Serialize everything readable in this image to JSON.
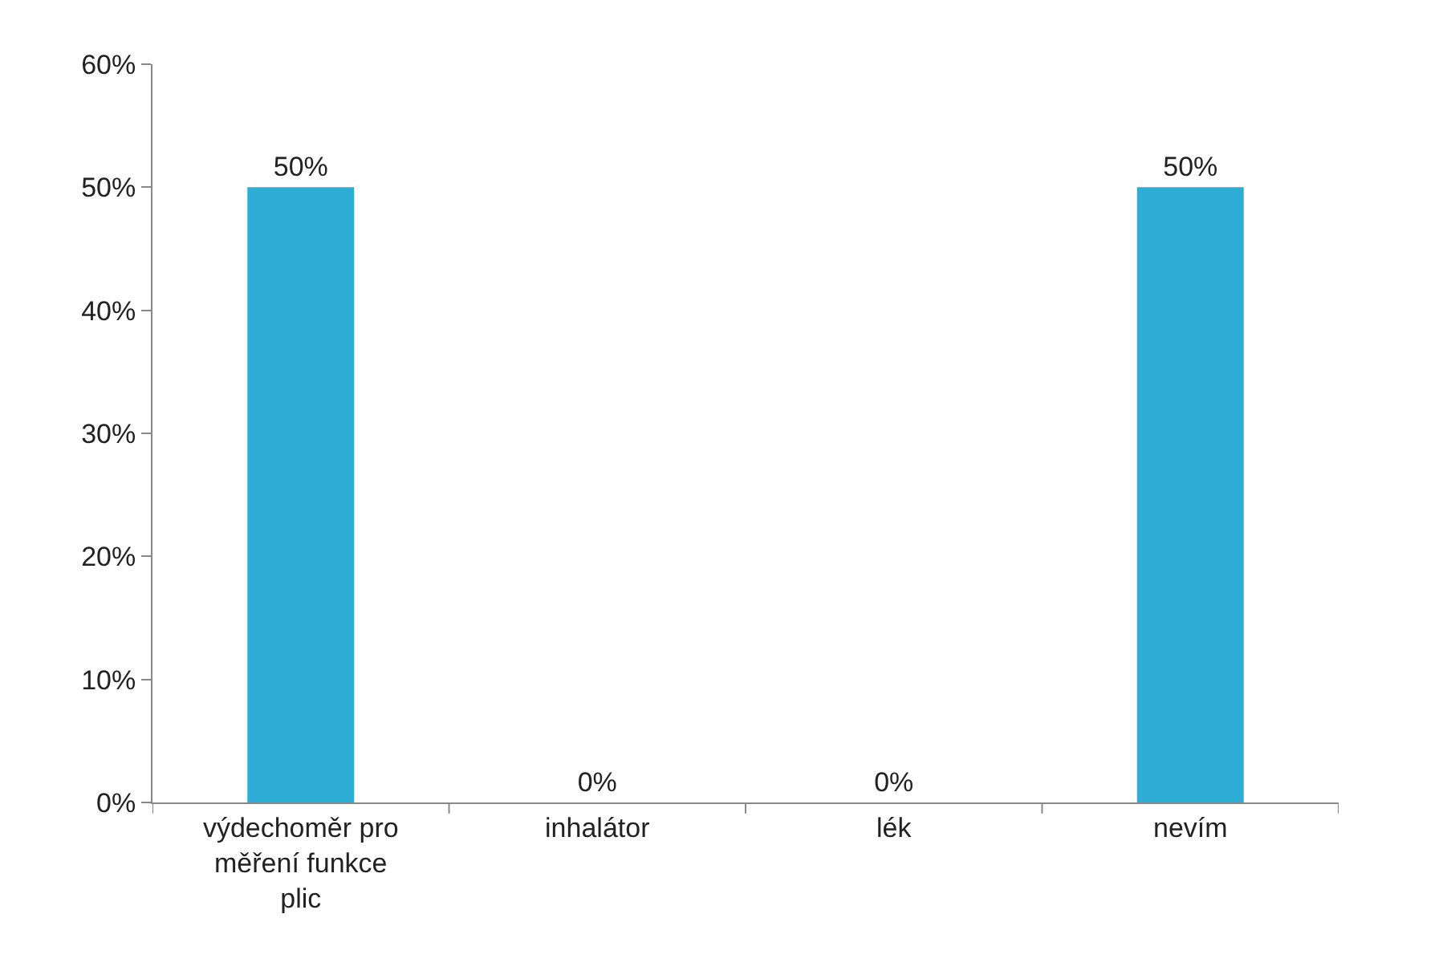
{
  "chart_data": {
    "type": "bar",
    "categories": [
      "výdechoměr pro měření funkce plic",
      "inhalátor",
      "lék",
      "nevím"
    ],
    "values": [
      50,
      0,
      0,
      50
    ],
    "value_labels": [
      "50%",
      "0%",
      "0%",
      "50%"
    ],
    "color": "#2eaed6",
    "ylim": [
      0,
      60
    ],
    "yticks": [
      {
        "value": 0,
        "label": "0%"
      },
      {
        "value": 10,
        "label": "10%"
      },
      {
        "value": 20,
        "label": "20%"
      },
      {
        "value": 30,
        "label": "30%"
      },
      {
        "value": 40,
        "label": "40%"
      },
      {
        "value": 50,
        "label": "50%"
      },
      {
        "value": 60,
        "label": "60%"
      }
    ],
    "legend": false
  }
}
